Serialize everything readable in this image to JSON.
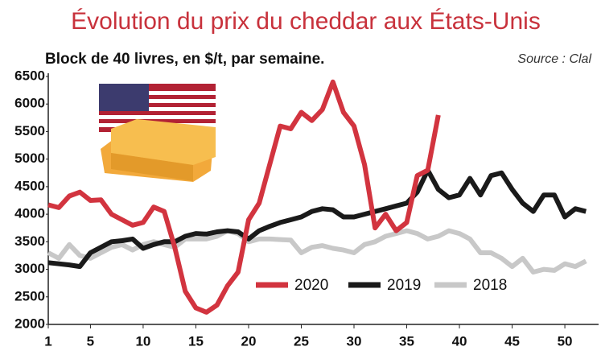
{
  "chart_data": {
    "type": "line",
    "title": "Évolution du prix du cheddar aux États-Unis",
    "subtitle": "Block de 40 livres, en $/t, par semaine.",
    "source": "Source : Clal",
    "x": [
      1,
      2,
      3,
      4,
      5,
      6,
      7,
      8,
      9,
      10,
      11,
      12,
      13,
      14,
      15,
      16,
      17,
      18,
      19,
      20,
      21,
      22,
      23,
      24,
      25,
      26,
      27,
      28,
      29,
      30,
      31,
      32,
      33,
      34,
      35,
      36,
      37,
      38,
      39,
      40,
      41,
      42,
      43,
      44,
      45,
      46,
      47,
      48,
      49,
      50,
      51,
      52
    ],
    "series": [
      {
        "name": "2020",
        "color": "#d2343f",
        "values": [
          4170,
          4120,
          4330,
          4400,
          4250,
          4260,
          4000,
          3900,
          3800,
          3850,
          4130,
          4050,
          3400,
          2600,
          2300,
          2220,
          2350,
          2700,
          2950,
          3900,
          4200,
          4900,
          5600,
          5550,
          5850,
          5700,
          5900,
          6400,
          5850,
          5600,
          4900,
          3750,
          4000,
          3700,
          3850,
          4700,
          4800,
          5800,
          null,
          null,
          null,
          null,
          null,
          null,
          null,
          null,
          null,
          null,
          null,
          null,
          null,
          null
        ]
      },
      {
        "name": "2019",
        "color": "#1a1a1a",
        "values": [
          3120,
          3100,
          3080,
          3050,
          3300,
          3400,
          3500,
          3520,
          3550,
          3380,
          3450,
          3500,
          3500,
          3600,
          3650,
          3640,
          3680,
          3700,
          3680,
          3550,
          3700,
          3780,
          3850,
          3900,
          3950,
          4050,
          4100,
          4080,
          3950,
          3950,
          4000,
          4050,
          4100,
          4150,
          4200,
          4400,
          4800,
          4450,
          4300,
          4350,
          4650,
          4350,
          4700,
          4750,
          4450,
          4200,
          4050,
          4350,
          4350,
          3950,
          4100,
          4050
        ]
      },
      {
        "name": "2018",
        "color": "#c8c8c8",
        "values": [
          3300,
          3200,
          3450,
          3250,
          3200,
          3300,
          3400,
          3450,
          3350,
          3450,
          3500,
          3450,
          3400,
          3550,
          3550,
          3550,
          3600,
          3700,
          3650,
          3500,
          3550,
          3550,
          3540,
          3530,
          3300,
          3400,
          3430,
          3380,
          3350,
          3300,
          3450,
          3500,
          3600,
          3650,
          3700,
          3650,
          3550,
          3600,
          3700,
          3650,
          3550,
          3300,
          3300,
          3200,
          3050,
          3200,
          2950,
          3000,
          2980,
          3100,
          3050,
          3150
        ]
      }
    ],
    "xlim": [
      1,
      53.2
    ],
    "xticks": [
      1,
      5,
      10,
      15,
      20,
      25,
      30,
      35,
      40,
      45,
      50
    ],
    "ylim": [
      2000,
      6500
    ],
    "yticks": [
      2000,
      2500,
      3000,
      3500,
      4000,
      4500,
      5000,
      5500,
      6000,
      6500
    ]
  }
}
